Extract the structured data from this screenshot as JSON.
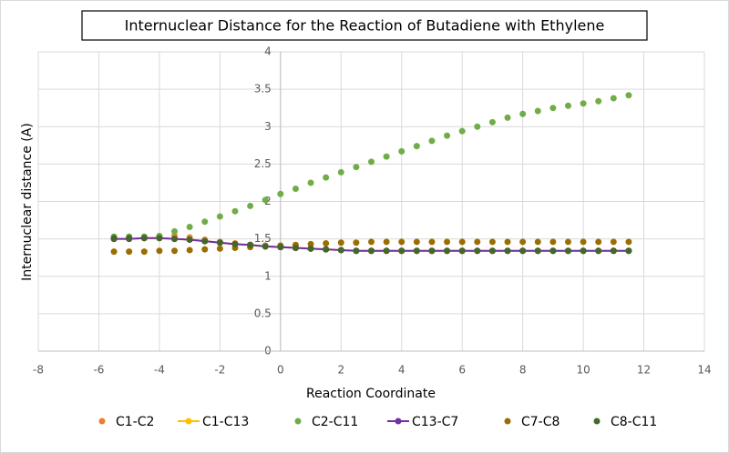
{
  "chart_data": {
    "type": "scatter",
    "title": "Internuclear Distance  for the  Reaction of Butadiene with Ethylene",
    "x_label": "Reaction Coordinate",
    "y_label": "Internuclear distance (A)",
    "xlim": [
      -8,
      14
    ],
    "xticks": [
      -8,
      -6,
      -4,
      -2,
      0,
      2,
      4,
      6,
      8,
      10,
      12,
      14
    ],
    "ylim": [
      0,
      4
    ],
    "yticks": [
      0,
      0.5,
      1,
      1.5,
      2,
      2.5,
      3,
      3.5,
      4
    ],
    "grid": true,
    "legend": "bottom",
    "x": [
      -5.5,
      -5,
      -4.5,
      -4,
      -3.5,
      -3,
      -2.5,
      -2,
      -1.5,
      -1,
      -0.5,
      0,
      0.5,
      1,
      1.5,
      2,
      2.5,
      3,
      3.5,
      4,
      4.5,
      5,
      5.5,
      6,
      6.5,
      7,
      7.5,
      8,
      8.5,
      9,
      9.5,
      10,
      10.5,
      11,
      11.5
    ],
    "series": [
      {
        "name": "C1-C2",
        "color": "#ed7d31",
        "line": false,
        "values": [
          1.5,
          1.51,
          1.52,
          1.53,
          1.54,
          1.52,
          1.49,
          1.46,
          1.44,
          1.42,
          1.41,
          1.39,
          1.38,
          1.37,
          1.36,
          1.35,
          1.34,
          1.34,
          1.34,
          1.34,
          1.34,
          1.34,
          1.34,
          1.34,
          1.34,
          1.34,
          1.34,
          1.34,
          1.34,
          1.34,
          1.34,
          1.34,
          1.34,
          1.34,
          1.34
        ]
      },
      {
        "name": "C1-C13",
        "color": "#ffc000",
        "line": true,
        "values": [
          1.5,
          1.5,
          1.51,
          1.51,
          1.5,
          1.49,
          1.47,
          1.45,
          1.43,
          1.42,
          1.4,
          1.39,
          1.38,
          1.37,
          1.36,
          1.35,
          1.34,
          1.34,
          1.34,
          1.34,
          1.34,
          1.34,
          1.34,
          1.34,
          1.34,
          1.34,
          1.34,
          1.34,
          1.34,
          1.34,
          1.34,
          1.34,
          1.34,
          1.34,
          1.34
        ]
      },
      {
        "name": "C2-C11",
        "color": "#70ad47",
        "line": false,
        "values": [
          1.53,
          1.53,
          1.53,
          1.54,
          1.6,
          1.66,
          1.73,
          1.8,
          1.87,
          1.94,
          2.02,
          2.1,
          2.17,
          2.25,
          2.32,
          2.39,
          2.46,
          2.53,
          2.6,
          2.67,
          2.74,
          2.81,
          2.88,
          2.94,
          3.0,
          3.06,
          3.12,
          3.17,
          3.21,
          3.25,
          3.28,
          3.31,
          3.34,
          3.38,
          3.42
        ]
      },
      {
        "name": "C13-C7",
        "color": "#7030a0",
        "line": true,
        "values": [
          1.5,
          1.5,
          1.51,
          1.51,
          1.5,
          1.49,
          1.47,
          1.45,
          1.43,
          1.42,
          1.4,
          1.39,
          1.38,
          1.37,
          1.36,
          1.35,
          1.34,
          1.34,
          1.34,
          1.34,
          1.34,
          1.34,
          1.34,
          1.34,
          1.34,
          1.34,
          1.34,
          1.34,
          1.34,
          1.34,
          1.34,
          1.34,
          1.34,
          1.34,
          1.34
        ]
      },
      {
        "name": "C7-C8",
        "color": "#9c6d00",
        "line": false,
        "values": [
          1.33,
          1.33,
          1.33,
          1.34,
          1.34,
          1.35,
          1.36,
          1.37,
          1.38,
          1.39,
          1.4,
          1.41,
          1.42,
          1.43,
          1.44,
          1.45,
          1.45,
          1.46,
          1.46,
          1.46,
          1.46,
          1.46,
          1.46,
          1.46,
          1.46,
          1.46,
          1.46,
          1.46,
          1.46,
          1.46,
          1.46,
          1.46,
          1.46,
          1.46,
          1.46
        ]
      },
      {
        "name": "C8-C11",
        "color": "#43682b",
        "line": false,
        "values": [
          1.51,
          1.51,
          1.51,
          1.51,
          1.5,
          1.49,
          1.47,
          1.45,
          1.43,
          1.42,
          1.4,
          1.39,
          1.38,
          1.37,
          1.36,
          1.35,
          1.34,
          1.34,
          1.34,
          1.34,
          1.34,
          1.34,
          1.34,
          1.34,
          1.34,
          1.34,
          1.34,
          1.34,
          1.34,
          1.34,
          1.34,
          1.34,
          1.34,
          1.34,
          1.34
        ]
      }
    ]
  }
}
